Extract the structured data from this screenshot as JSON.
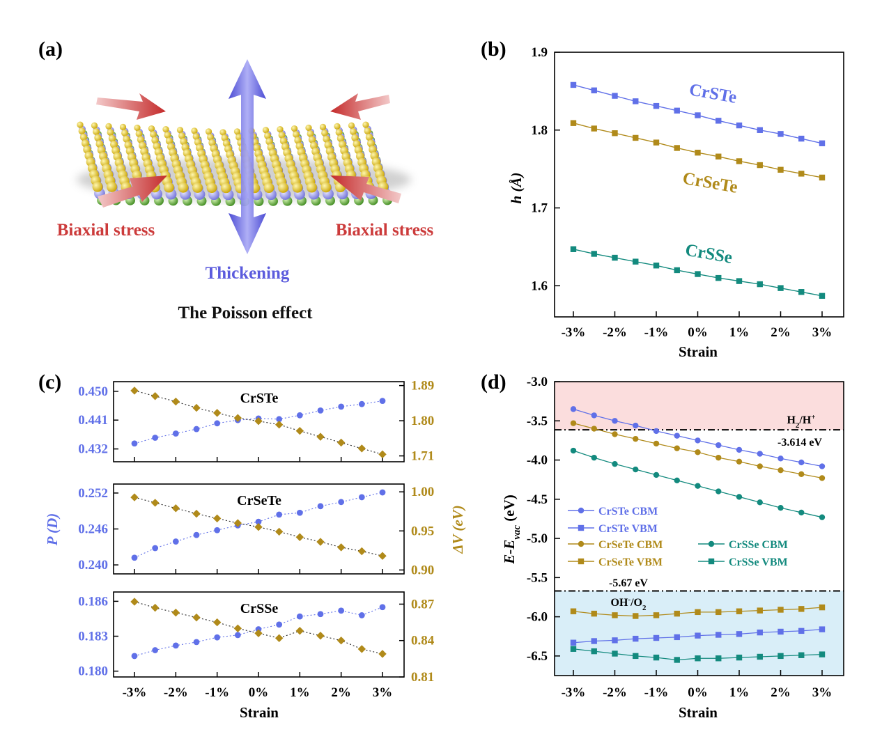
{
  "panel_a": {
    "label": "(a)",
    "left_caption": "Biaxial stress",
    "right_caption": "Biaxial stress",
    "thickening": "Thickening",
    "title": "The Poisson effect",
    "colors": {
      "stress": "#cc3b3b",
      "thickening": "#5b5bdd",
      "s": "#d7b400",
      "cr": "#8a8ae0",
      "te": "#6aa63b"
    }
  },
  "chart_data": [
    {
      "panel": "(b)",
      "type": "line",
      "x": [
        "-3%",
        "-2.5%",
        "-2%",
        "-1.5%",
        "-1%",
        "-0.5%",
        "0%",
        "0.5%",
        "1%",
        "1.5%",
        "2%",
        "2.5%",
        "3%"
      ],
      "xtick_labels": [
        "-3%",
        "-2%",
        "-1%",
        "0%",
        "1%",
        "2%",
        "3%"
      ],
      "xlabel": "Strain",
      "ylabel": "h (Å)",
      "ylim": [
        1.56,
        1.9
      ],
      "yticks": [
        "1.6",
        "1.7",
        "1.8",
        "1.9"
      ],
      "series": [
        {
          "name": "CrSTe",
          "color": "#6070e8",
          "marker": "square",
          "values": [
            1.858,
            1.851,
            1.844,
            1.837,
            1.831,
            1.825,
            1.819,
            1.812,
            1.806,
            1.8,
            1.795,
            1.789,
            1.783
          ]
        },
        {
          "name": "CrSeTe",
          "color": "#b08a1a",
          "marker": "square",
          "values": [
            1.809,
            1.802,
            1.796,
            1.79,
            1.784,
            1.777,
            1.771,
            1.766,
            1.76,
            1.755,
            1.749,
            1.744,
            1.739
          ]
        },
        {
          "name": "CrSSe",
          "color": "#138a7e",
          "marker": "square",
          "values": [
            1.647,
            1.641,
            1.636,
            1.631,
            1.626,
            1.62,
            1.615,
            1.61,
            1.606,
            1.602,
            1.597,
            1.592,
            1.587
          ]
        }
      ]
    },
    {
      "panel": "(c)",
      "type": "line",
      "x": [
        "-3%",
        "-2.5%",
        "-2%",
        "-1.5%",
        "-1%",
        "-0.5%",
        "0%",
        "0.5%",
        "1%",
        "1.5%",
        "2%",
        "2.5%",
        "3%"
      ],
      "xtick_labels": [
        "-3%",
        "-2%",
        "-1%",
        "0%",
        "1%",
        "2%",
        "3%"
      ],
      "xlabel": "Strain",
      "ylabel_left": "P (D)",
      "ylabel_right": "ΔV (eV)",
      "subplots": [
        {
          "name": "CrSTe",
          "left": {
            "ylim": [
              0.428,
              0.453
            ],
            "ticks": [
              "0.432",
              "0.441",
              "0.450"
            ],
            "values": [
              0.4337,
              0.4355,
              0.4368,
              0.4382,
              0.44,
              0.441,
              0.4415,
              0.4413,
              0.4425,
              0.444,
              0.4452,
              0.446,
              0.447
            ]
          },
          "right": {
            "ylim": [
              1.695,
              1.9
            ],
            "ticks": [
              "1.71",
              "1.80",
              "1.89"
            ],
            "values": [
              1.877,
              1.863,
              1.849,
              1.833,
              1.82,
              1.807,
              1.799,
              1.79,
              1.774,
              1.759,
              1.744,
              1.729,
              1.714
            ]
          }
        },
        {
          "name": "CrSeTe",
          "left": {
            "ylim": [
              0.2385,
              0.2535
            ],
            "ticks": [
              "0.240",
              "0.246",
              "0.252"
            ],
            "values": [
              0.2412,
              0.2428,
              0.2439,
              0.245,
              0.2458,
              0.2466,
              0.2472,
              0.2484,
              0.2487,
              0.2498,
              0.2505,
              0.2513,
              0.2521
            ]
          },
          "right": {
            "ylim": [
              0.895,
              1.01
            ],
            "ticks": [
              "0.90",
              "0.95",
              "1.00"
            ],
            "values": [
              0.993,
              0.986,
              0.979,
              0.972,
              0.966,
              0.96,
              0.955,
              0.949,
              0.942,
              0.936,
              0.929,
              0.924,
              0.918
            ]
          }
        },
        {
          "name": "CrSSe",
          "left": {
            "ylim": [
              0.1795,
              0.1868
            ],
            "ticks": [
              "0.180",
              "0.183",
              "0.186"
            ],
            "values": [
              0.1813,
              0.1818,
              0.1822,
              0.1825,
              0.1829,
              0.1831,
              0.1836,
              0.184,
              0.1847,
              0.1849,
              0.1852,
              0.1848,
              0.1855
            ]
          },
          "right": {
            "ylim": [
              0.81,
              0.88
            ],
            "ticks": [
              "0.81",
              "0.84",
              "0.87"
            ],
            "values": [
              0.872,
              0.867,
              0.863,
              0.859,
              0.855,
              0.85,
              0.846,
              0.842,
              0.848,
              0.844,
              0.84,
              0.833,
              0.829
            ]
          }
        }
      ]
    },
    {
      "panel": "(d)",
      "type": "line",
      "x": [
        "-3%",
        "-2.5%",
        "-2%",
        "-1.5%",
        "-1%",
        "-0.5%",
        "0%",
        "0.5%",
        "1%",
        "1.5%",
        "2%",
        "2.5%",
        "3%"
      ],
      "xtick_labels": [
        "-3%",
        "-2%",
        "-1%",
        "0%",
        "1%",
        "2%",
        "3%"
      ],
      "xlabel": "Strain",
      "ylabel": "E-E_vac (eV)",
      "ylim": [
        -6.75,
        -3.0
      ],
      "yticks": [
        "-3.0",
        "-3.5",
        "-4.0",
        "-4.5",
        "-5.0",
        "-5.5",
        "-6.0",
        "-6.5"
      ],
      "reference_lines": [
        {
          "value": -3.614,
          "label": "H2/H+",
          "value_label": "-3.614 eV"
        },
        {
          "value": -5.67,
          "label": "OH-/O2",
          "value_label": "-5.67 eV"
        }
      ],
      "region_colors": {
        "top": "#fbdddd",
        "bottom": "#d9eef8"
      },
      "series": [
        {
          "name": "CrSTe CBM",
          "color": "#6070e8",
          "marker": "circle",
          "values": [
            -3.35,
            -3.43,
            -3.5,
            -3.56,
            -3.63,
            -3.69,
            -3.75,
            -3.81,
            -3.87,
            -3.92,
            -3.98,
            -4.03,
            -4.08
          ]
        },
        {
          "name": "CrSTe VBM",
          "color": "#6070e8",
          "marker": "square",
          "values": [
            -6.33,
            -6.31,
            -6.3,
            -6.28,
            -6.27,
            -6.26,
            -6.24,
            -6.23,
            -6.22,
            -6.2,
            -6.19,
            -6.18,
            -6.16
          ]
        },
        {
          "name": "CrSeTe CBM",
          "color": "#b08a1a",
          "marker": "circle",
          "values": [
            -3.53,
            -3.6,
            -3.67,
            -3.73,
            -3.79,
            -3.85,
            -3.9,
            -3.97,
            -4.02,
            -4.08,
            -4.13,
            -4.18,
            -4.23
          ]
        },
        {
          "name": "CrSeTe VBM",
          "color": "#b08a1a",
          "marker": "square",
          "values": [
            -5.93,
            -5.96,
            -5.98,
            -5.99,
            -5.98,
            -5.96,
            -5.94,
            -5.94,
            -5.93,
            -5.92,
            -5.91,
            -5.9,
            -5.88
          ]
        },
        {
          "name": "CrSSe CBM",
          "color": "#138a7e",
          "marker": "circle",
          "values": [
            -3.88,
            -3.97,
            -4.05,
            -4.12,
            -4.19,
            -4.26,
            -4.33,
            -4.4,
            -4.47,
            -4.54,
            -4.61,
            -4.67,
            -4.73
          ]
        },
        {
          "name": "CrSSe VBM",
          "color": "#138a7e",
          "marker": "square",
          "values": [
            -6.41,
            -6.44,
            -6.47,
            -6.5,
            -6.52,
            -6.55,
            -6.53,
            -6.53,
            -6.52,
            -6.51,
            -6.5,
            -6.49,
            -6.48
          ]
        }
      ]
    }
  ]
}
